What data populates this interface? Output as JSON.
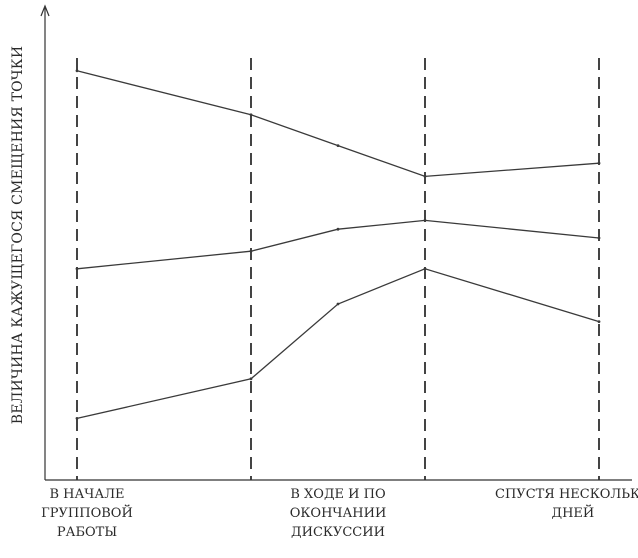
{
  "chart_data": {
    "type": "line",
    "title": "",
    "xlabel": "",
    "ylabel": "ВЕЛИЧИНА КАЖУЩЕГОСЯ СМЕЩЕНИЯ ТОЧКИ",
    "ylim": [
      0,
      10
    ],
    "grid": false,
    "legend": "none",
    "phase_markers": [
      0,
      2,
      4,
      6
    ],
    "x": [
      0,
      2,
      3,
      4,
      6
    ],
    "series": [
      {
        "values": [
          9.3,
          8.3,
          7.6,
          6.9,
          7.2
        ]
      },
      {
        "values": [
          4.8,
          5.2,
          5.7,
          5.9,
          5.5
        ]
      },
      {
        "values": [
          1.4,
          2.3,
          4.0,
          4.8,
          3.6
        ]
      }
    ],
    "categories": [
      {
        "x": 0,
        "lines": [
          "В НАЧАЛЕ",
          "ГРУППОВОЙ",
          "РАБОТЫ"
        ]
      },
      {
        "x": 3,
        "lines": [
          "В ХОДЕ И ПО",
          "ОКОНЧАНИИ",
          "ДИСКУССИИ"
        ]
      },
      {
        "x": 5.7,
        "lines": [
          "СПУСТЯ НЕСКОЛЬКО",
          "ДНЕЙ"
        ]
      }
    ]
  }
}
